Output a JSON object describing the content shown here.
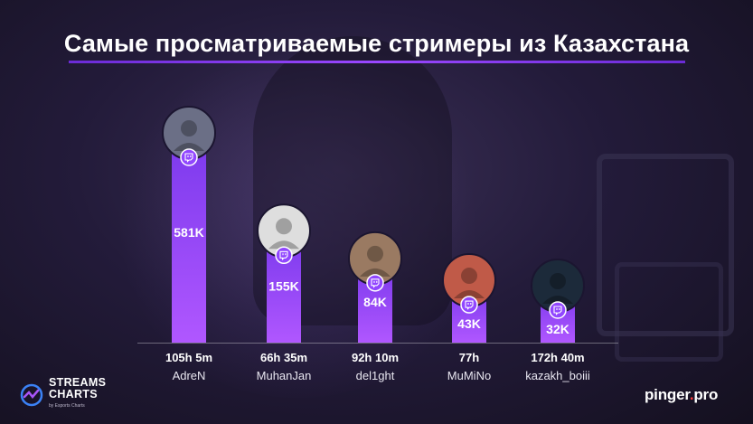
{
  "title": "Самые просматриваемые стримеры из Казахстана",
  "colors": {
    "bar_top": "#7c3aed",
    "bar_bottom": "#b057ff",
    "accent": "#9146ff",
    "platform_badge": "#9146ff",
    "logo_red": "#ff3b3b"
  },
  "chart_data": {
    "type": "bar",
    "title": "Самые просматриваемые стримеры из Казахстана",
    "categories": [
      "AdreN",
      "MuhanJan",
      "del1ght",
      "MuMiNo",
      "kazakh_boiii"
    ],
    "values": [
      581,
      155,
      84,
      43,
      32
    ],
    "value_labels": [
      "581K",
      "155K",
      "84K",
      "43K",
      "32K"
    ],
    "hours_streamed": [
      "105h 5m",
      "66h 35m",
      "92h 10m",
      "77h",
      "172h 40m"
    ],
    "xlabel": "",
    "ylabel": "",
    "grid": false,
    "platform_icon": "twitch-icon",
    "avatar_icons": [
      "avatar-adren",
      "avatar-muhanjan",
      "avatar-del1ght",
      "avatar-mumino",
      "avatar-kazakh-boiii"
    ]
  },
  "footer": {
    "brand_left_line1": "STREAMS",
    "brand_left_line2": "CHARTS",
    "brand_left_by": "by Esports Charts",
    "brand_right_main": "pinger",
    "brand_right_dot": ".",
    "brand_right_suffix": "pro"
  }
}
